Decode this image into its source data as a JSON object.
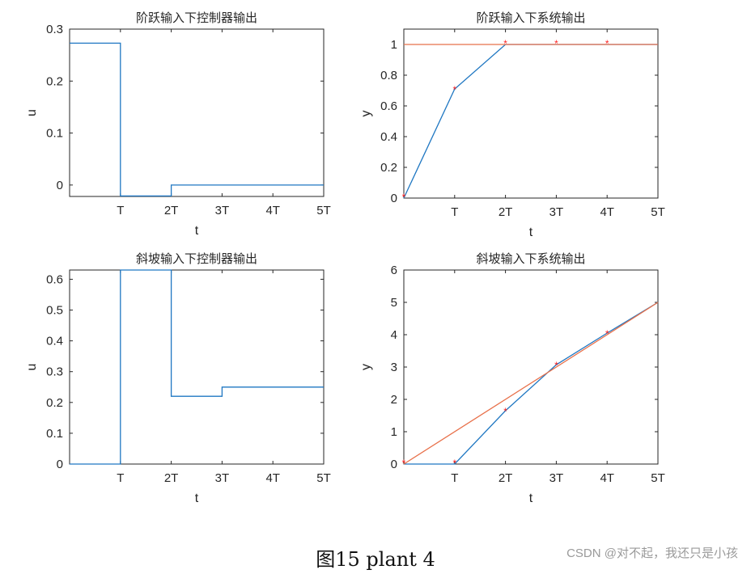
{
  "figure": {
    "caption": "图15 plant 4",
    "watermark": "CSDN @对不起，我还只是小孩"
  },
  "colors": {
    "blue": "#1f77c2",
    "orange": "#e8704a",
    "marker": "#ff2222",
    "axis": "#262626"
  },
  "chart_data": [
    {
      "type": "line",
      "title": "阶跃输入下控制器输出",
      "xlabel": "t",
      "ylabel": "u",
      "xlim": [
        0,
        5
      ],
      "ylim": [
        -0.022,
        0.3
      ],
      "xticks": [
        1,
        2,
        3,
        4,
        5
      ],
      "xticklabels": [
        "T",
        "2T",
        "3T",
        "4T",
        "5T"
      ],
      "yticks": [
        0,
        0.1,
        0.2,
        0.3
      ],
      "yticklabels": [
        "0",
        "0.1",
        "0.2",
        "0.3"
      ],
      "series": [
        {
          "color": "blue",
          "step": true,
          "x": [
            0,
            1,
            1,
            2,
            2,
            3,
            4,
            5
          ],
          "y": [
            0.273,
            0.273,
            -0.021,
            -0.021,
            0.0,
            0.0,
            0.0,
            0.0
          ]
        }
      ]
    },
    {
      "type": "line",
      "title": "阶跃输入下系统输出",
      "xlabel": "t",
      "ylabel": "y",
      "xlim": [
        0,
        5
      ],
      "ylim": [
        0,
        1.1
      ],
      "xticks": [
        1,
        2,
        3,
        4,
        5
      ],
      "xticklabels": [
        "T",
        "2T",
        "3T",
        "4T",
        "5T"
      ],
      "yticks": [
        0,
        0.2,
        0.4,
        0.6,
        0.8,
        1
      ],
      "yticklabels": [
        "0",
        "0.2",
        "0.4",
        "0.6",
        "0.8",
        "1"
      ],
      "series": [
        {
          "color": "blue",
          "x": [
            0,
            1,
            2,
            3,
            4,
            5
          ],
          "y": [
            0,
            0.71,
            1.0,
            1.0,
            1.0,
            1.0
          ]
        },
        {
          "color": "orange",
          "x": [
            0,
            5
          ],
          "y": [
            1.0,
            1.0
          ]
        }
      ],
      "markers": {
        "color": "marker",
        "x": [
          0,
          1,
          2,
          3,
          4
        ],
        "y": [
          0.01,
          0.71,
          1.01,
          1.01,
          1.01
        ]
      }
    },
    {
      "type": "line",
      "title": "斜坡输入下控制器输出",
      "xlabel": "t",
      "ylabel": "u",
      "xlim": [
        0,
        5
      ],
      "ylim": [
        0,
        0.63
      ],
      "xticks": [
        1,
        2,
        3,
        4,
        5
      ],
      "xticklabels": [
        "T",
        "2T",
        "3T",
        "4T",
        "5T"
      ],
      "yticks": [
        0,
        0.1,
        0.2,
        0.3,
        0.4,
        0.5,
        0.6
      ],
      "yticklabels": [
        "0",
        "0.1",
        "0.2",
        "0.3",
        "0.4",
        "0.5",
        "0.6"
      ],
      "series": [
        {
          "color": "blue",
          "step": true,
          "x": [
            0,
            1,
            1,
            2,
            2,
            3,
            3,
            5
          ],
          "y": [
            0.0,
            0.0,
            0.63,
            0.63,
            0.22,
            0.22,
            0.25,
            0.25
          ]
        }
      ]
    },
    {
      "type": "line",
      "title": "斜坡输入下系统输出",
      "xlabel": "t",
      "ylabel": "y",
      "xlim": [
        0,
        5
      ],
      "ylim": [
        0,
        6
      ],
      "xticks": [
        1,
        2,
        3,
        4,
        5
      ],
      "xticklabels": [
        "T",
        "2T",
        "3T",
        "4T",
        "5T"
      ],
      "yticks": [
        0,
        1,
        2,
        3,
        4,
        5,
        6
      ],
      "yticklabels": [
        "0",
        "1",
        "2",
        "3",
        "4",
        "5",
        "6"
      ],
      "series": [
        {
          "color": "blue",
          "x": [
            0,
            1,
            2,
            3,
            4,
            5
          ],
          "y": [
            0,
            0,
            1.65,
            3.07,
            4.05,
            5.0
          ]
        },
        {
          "color": "orange",
          "x": [
            0,
            5
          ],
          "y": [
            0,
            5.0
          ]
        }
      ],
      "markers": {
        "color": "marker",
        "x": [
          0,
          1,
          2,
          3,
          4
        ],
        "y": [
          0.05,
          0.05,
          1.65,
          3.07,
          4.05
        ]
      }
    }
  ]
}
